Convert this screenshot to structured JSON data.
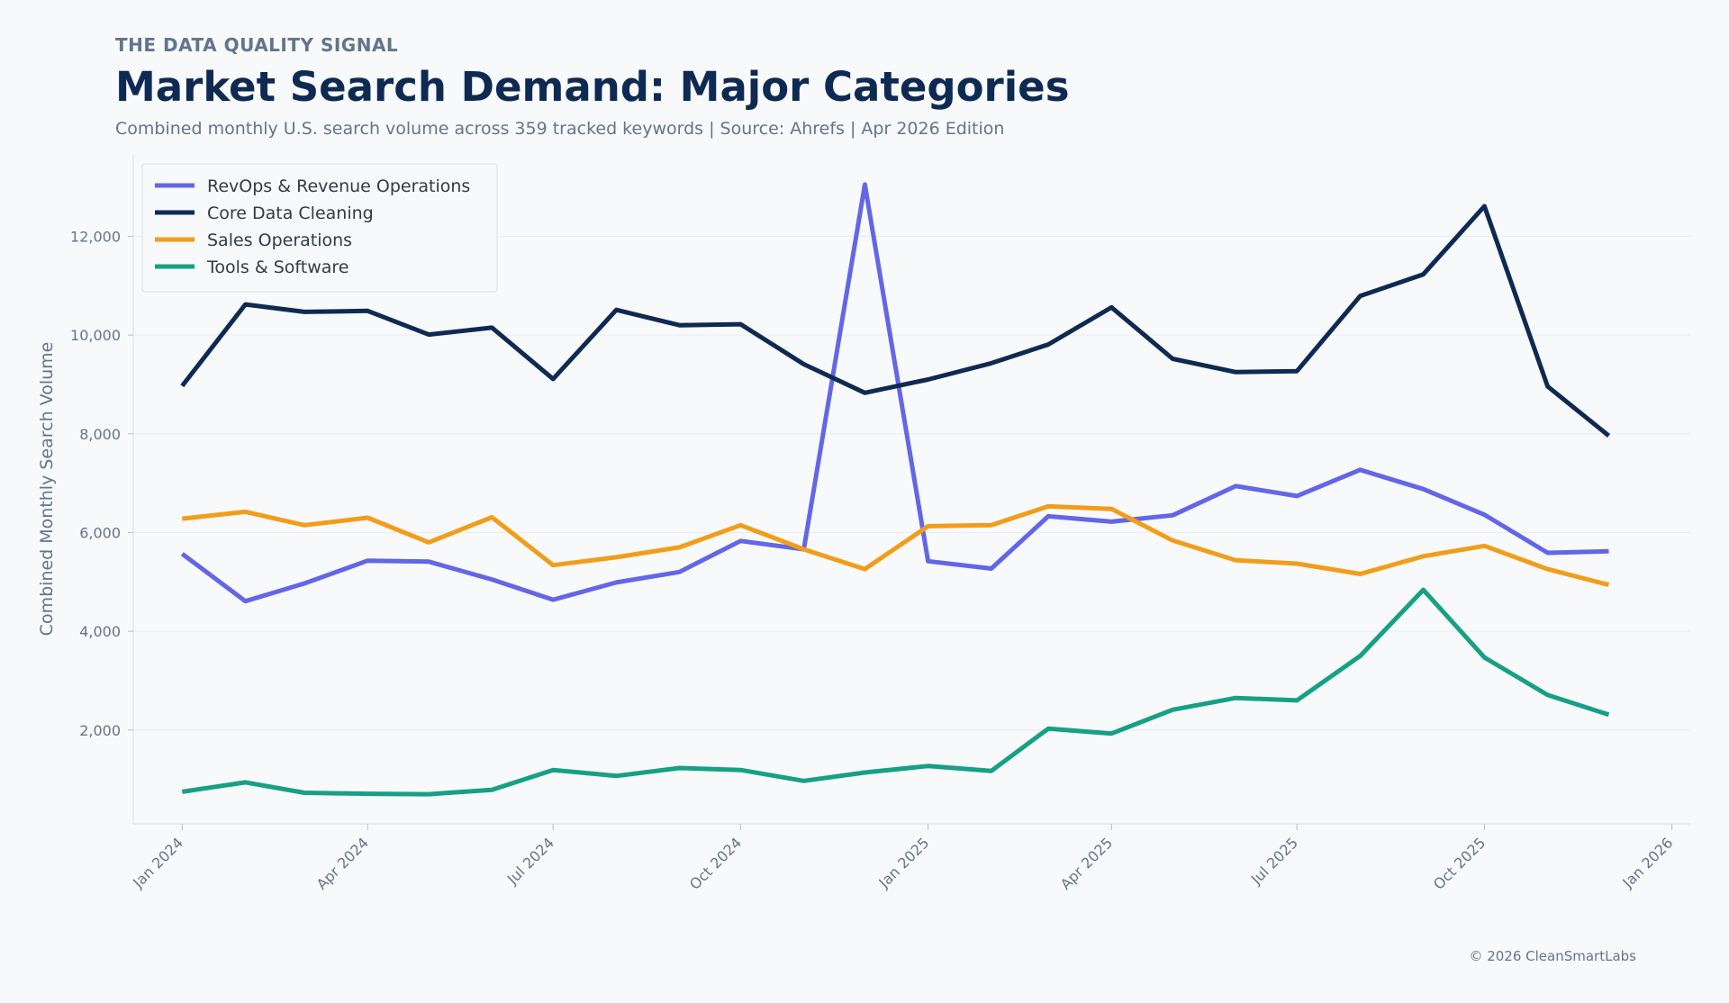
{
  "header": {
    "eyebrow": "THE DATA QUALITY SIGNAL",
    "title": "Market Search Demand: Major Categories",
    "subtitle": "Combined monthly U.S. search volume across 359 tracked keywords  |  Source: Ahrefs  |  Apr 2026 Edition"
  },
  "footer": {
    "copyright": "© 2026 CleanSmartLabs"
  },
  "chart_data": {
    "type": "line",
    "title": "Market Search Demand: Major Categories",
    "xlabel": "",
    "ylabel": "Combined Monthly Search Volume",
    "x": [
      "2024-01",
      "2024-02",
      "2024-03",
      "2024-04",
      "2024-05",
      "2024-06",
      "2024-07",
      "2024-08",
      "2024-09",
      "2024-10",
      "2024-11",
      "2024-12",
      "2025-01",
      "2025-02",
      "2025-03",
      "2025-04",
      "2025-05",
      "2025-06",
      "2025-07",
      "2025-08",
      "2025-09",
      "2025-10",
      "2025-11",
      "2025-12"
    ],
    "x_ticks": [
      "Jan 2024",
      "Apr 2024",
      "Jul 2024",
      "Oct 2024",
      "Jan 2025",
      "Apr 2025",
      "Jul 2025",
      "Oct 2025",
      "Jan 2026"
    ],
    "x_range": [
      "2023-12-08",
      "2026-01-10"
    ],
    "y_ticks": [
      2000,
      4000,
      6000,
      8000,
      10000,
      12000
    ],
    "y_tick_labels": [
      "2,000",
      "4,000",
      "6,000",
      "8,000",
      "10,000",
      "12,000"
    ],
    "ylim": [
      100,
      13650
    ],
    "grid": "horizontal",
    "legend_position": "top-left",
    "series": [
      {
        "name": "RevOps & Revenue Operations",
        "color": "#6366e6",
        "values": [
          5570,
          4610,
          4970,
          5430,
          5410,
          5050,
          4640,
          4990,
          5200,
          5830,
          5660,
          13050,
          5420,
          5270,
          6330,
          6220,
          6350,
          6940,
          6740,
          7270,
          6880,
          6360,
          5590,
          5620
        ]
      },
      {
        "name": "Core Data Cleaning",
        "color": "#0f2a52",
        "values": [
          8970,
          10620,
          10470,
          10490,
          10010,
          10150,
          9110,
          10510,
          10200,
          10220,
          9410,
          8830,
          9100,
          9430,
          9810,
          10560,
          9520,
          9250,
          9270,
          10790,
          11230,
          12610,
          8960,
          7960
        ]
      },
      {
        "name": "Sales Operations",
        "color": "#f29d1a",
        "values": [
          6280,
          6420,
          6150,
          6300,
          5800,
          6310,
          5340,
          5500,
          5700,
          6150,
          5660,
          5260,
          6130,
          6150,
          6530,
          6480,
          5840,
          5440,
          5370,
          5160,
          5520,
          5730,
          5260,
          4940
        ]
      },
      {
        "name": "Tools & Software",
        "color": "#16a085",
        "values": [
          750,
          940,
          730,
          710,
          700,
          790,
          1190,
          1070,
          1230,
          1190,
          970,
          1140,
          1270,
          1170,
          2030,
          1930,
          2410,
          2650,
          2600,
          3500,
          4840,
          3470,
          2710,
          2310
        ]
      }
    ]
  }
}
